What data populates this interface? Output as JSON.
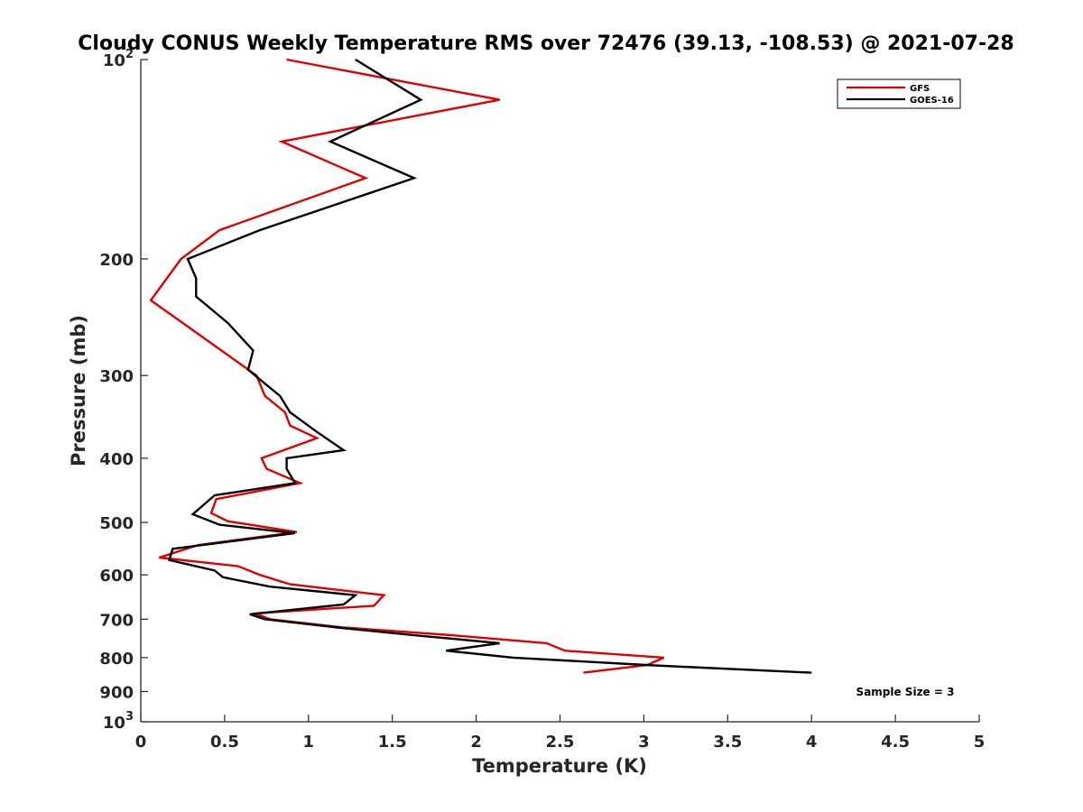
{
  "chart_data": {
    "type": "line",
    "title": "Cloudy CONUS Weekly Temperature RMS over 72476 (39.13, -108.53) @ 2021-07-28",
    "xlabel": "Temperature (K)",
    "ylabel": "Pressure (mb)",
    "xlim": [
      0,
      5
    ],
    "ylim": [
      100,
      1000
    ],
    "y_scale": "log",
    "y_reversed": true,
    "x_ticks": [
      "0",
      "0.5",
      "1",
      "1.5",
      "2",
      "2.5",
      "3",
      "3.5",
      "4",
      "4.5",
      "5"
    ],
    "y_ticks": [
      {
        "value": 100,
        "label": "10",
        "sup": "2"
      },
      {
        "value": 200,
        "label": "200",
        "sup": ""
      },
      {
        "value": 300,
        "label": "300",
        "sup": ""
      },
      {
        "value": 400,
        "label": "400",
        "sup": ""
      },
      {
        "value": 500,
        "label": "500",
        "sup": ""
      },
      {
        "value": 600,
        "label": "600",
        "sup": ""
      },
      {
        "value": 700,
        "label": "700",
        "sup": ""
      },
      {
        "value": 800,
        "label": "800",
        "sup": ""
      },
      {
        "value": 900,
        "label": "900",
        "sup": ""
      },
      {
        "value": 1000,
        "label": "10",
        "sup": "3"
      }
    ],
    "legend_position": "top-right",
    "annotation": "Sample Size = 3",
    "grid": false,
    "series": [
      {
        "name": "GFS",
        "color": "#e00000",
        "points": [
          [
            0.87,
            100
          ],
          [
            2.14,
            115
          ],
          [
            0.84,
            133
          ],
          [
            1.34,
            151
          ],
          [
            0.47,
            181
          ],
          [
            0.24,
            200
          ],
          [
            0.06,
            231
          ],
          [
            0.27,
            252
          ],
          [
            0.69,
            300
          ],
          [
            0.74,
            322
          ],
          [
            0.86,
            341
          ],
          [
            0.89,
            357
          ],
          [
            1.05,
            373
          ],
          [
            0.72,
            400
          ],
          [
            0.75,
            415
          ],
          [
            0.95,
            436
          ],
          [
            0.45,
            461
          ],
          [
            0.42,
            484
          ],
          [
            0.52,
            498
          ],
          [
            0.93,
            517
          ],
          [
            0.34,
            541
          ],
          [
            0.11,
            565
          ],
          [
            0.58,
            582
          ],
          [
            0.71,
            600
          ],
          [
            0.89,
            620
          ],
          [
            1.45,
            644
          ],
          [
            1.39,
            668
          ],
          [
            0.68,
            686
          ],
          [
            0.77,
            700
          ],
          [
            1.2,
            720
          ],
          [
            1.85,
            740
          ],
          [
            2.42,
            761
          ],
          [
            2.53,
            781
          ],
          [
            3.12,
            800
          ],
          [
            3.02,
            821
          ],
          [
            2.64,
            843
          ]
        ]
      },
      {
        "name": "GOES-16",
        "color": "#000000",
        "points": [
          [
            1.28,
            100
          ],
          [
            1.67,
            115
          ],
          [
            1.13,
            133
          ],
          [
            1.63,
            151
          ],
          [
            0.71,
            181
          ],
          [
            0.28,
            200
          ],
          [
            0.33,
            214
          ],
          [
            0.33,
            228
          ],
          [
            0.52,
            250
          ],
          [
            0.67,
            275
          ],
          [
            0.64,
            294
          ],
          [
            0.83,
            322
          ],
          [
            0.89,
            341
          ],
          [
            1.05,
            365
          ],
          [
            1.21,
            389
          ],
          [
            0.87,
            400
          ],
          [
            0.87,
            415
          ],
          [
            0.92,
            436
          ],
          [
            0.44,
            455
          ],
          [
            0.31,
            486
          ],
          [
            0.47,
            504
          ],
          [
            0.92,
            519
          ],
          [
            0.19,
            548
          ],
          [
            0.17,
            570
          ],
          [
            0.44,
            591
          ],
          [
            0.49,
            605
          ],
          [
            0.77,
            625
          ],
          [
            1.28,
            644
          ],
          [
            1.21,
            665
          ],
          [
            0.65,
            688
          ],
          [
            0.74,
            700
          ],
          [
            1.18,
            721
          ],
          [
            1.68,
            742
          ],
          [
            2.14,
            761
          ],
          [
            1.82,
            781
          ],
          [
            2.22,
            800
          ],
          [
            3.06,
            822
          ],
          [
            4.0,
            843
          ]
        ]
      }
    ]
  }
}
